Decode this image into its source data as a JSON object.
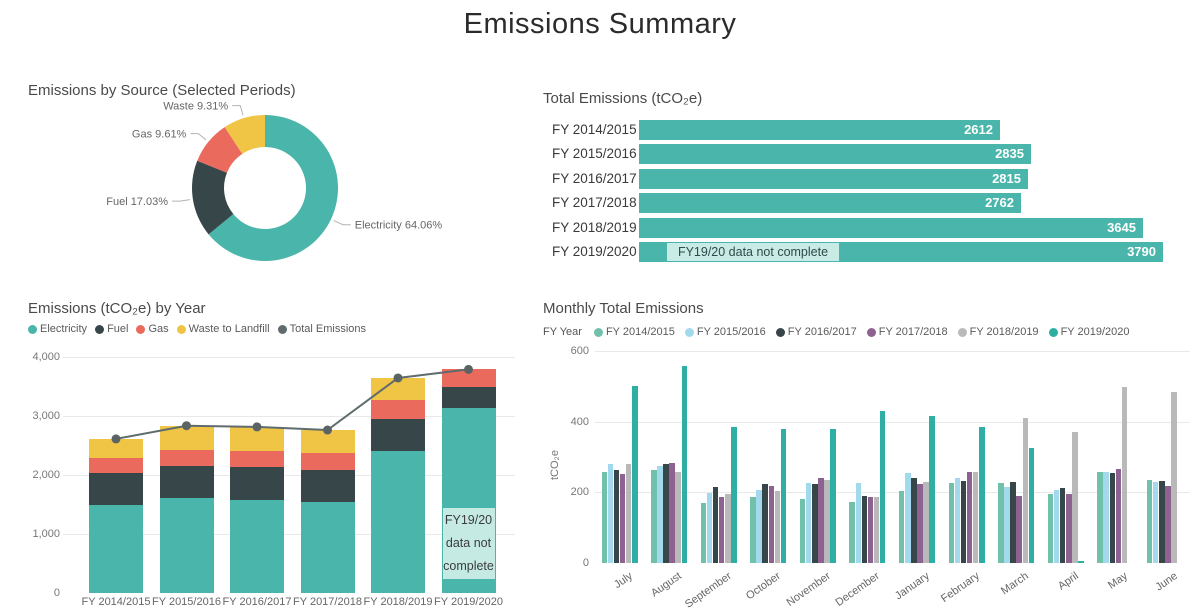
{
  "page": {
    "title": "Emissions Summary"
  },
  "colors": {
    "teal": "#4ab5aa",
    "dark": "#374649",
    "red": "#eb6a5e",
    "yellow": "#f0c545",
    "total_gray": "#5f6b6d",
    "annotation_bg": "#c9ebe5",
    "grid": "#e9e9e9",
    "muted_teal": "#70c0ac",
    "light_blue": "#a2d9ec",
    "purple": "#8d6190",
    "light_gray": "#b9b9b9",
    "bright_teal": "#2fafa3"
  },
  "chart_data": [
    {
      "type": "pie",
      "donut": true,
      "title": "Emissions by Source (Selected Periods)",
      "labels": [
        "Electricity",
        "Fuel",
        "Gas",
        "Waste"
      ],
      "values": [
        64.06,
        17.03,
        9.61,
        9.31
      ],
      "display_labels": [
        "Electricity 64.06%",
        "Fuel 17.03%",
        "Gas 9.61%",
        "Waste 9.31%"
      ],
      "colors": [
        "#4ab5aa",
        "#374649",
        "#eb6a5e",
        "#f0c545"
      ]
    },
    {
      "type": "bar",
      "orientation": "horizontal",
      "title": "Total Emissions (tCO₂e)",
      "categories": [
        "FY 2014/2015",
        "FY 2015/2016",
        "FY 2016/2017",
        "FY 2017/2018",
        "FY 2018/2019",
        "FY 2019/2020"
      ],
      "values": [
        2612,
        2835,
        2815,
        2762,
        3645,
        3790
      ],
      "bar_color": "#4ab5aa",
      "xlim": [
        0,
        3790
      ],
      "annotation": {
        "text": "FY19/20 data not complete",
        "row_index": 5
      }
    },
    {
      "type": "bar",
      "stacked": true,
      "title": "Emissions (tCO₂e) by Year",
      "categories": [
        "FY 2014/2015",
        "FY 2015/2016",
        "FY 2016/2017",
        "FY 2017/2018",
        "FY 2018/2019",
        "FY 2019/2020"
      ],
      "series": [
        {
          "name": "Electricity",
          "color": "#4ab5aa",
          "values": [
            1490,
            1610,
            1570,
            1540,
            2410,
            3130
          ]
        },
        {
          "name": "Fuel",
          "color": "#374649",
          "values": [
            540,
            550,
            560,
            540,
            545,
            355
          ]
        },
        {
          "name": "Gas",
          "color": "#eb6a5e",
          "values": [
            250,
            270,
            280,
            300,
            310,
            305
          ]
        },
        {
          "name": "Waste to Landfill",
          "color": "#f0c545",
          "values": [
            332,
            405,
            405,
            382,
            380,
            0
          ]
        }
      ],
      "line_series": {
        "name": "Total Emissions",
        "color": "#5f6b6d",
        "values": [
          2612,
          2835,
          2815,
          2762,
          3645,
          3790
        ]
      },
      "ylim": [
        0,
        4000
      ],
      "yticks": [
        "0",
        "1,000",
        "2,000",
        "3,000",
        "4,000"
      ],
      "annotation": {
        "lines": [
          "FY19/20",
          "data not",
          "complete"
        ],
        "category_index": 5
      }
    },
    {
      "type": "bar",
      "grouped": true,
      "title": "Monthly Total Emissions",
      "legend_title": "FY Year",
      "ylabel": "tCO₂e",
      "categories": [
        "July",
        "August",
        "September",
        "October",
        "November",
        "December",
        "January",
        "February",
        "March",
        "April",
        "May",
        "June"
      ],
      "series": [
        {
          "name": "FY 2014/2015",
          "color": "#70c0ac",
          "values": [
            257,
            263,
            171,
            188,
            180,
            174,
            203,
            226,
            226,
            194,
            257,
            234
          ]
        },
        {
          "name": "FY 2015/2016",
          "color": "#a2d9ec",
          "values": [
            280,
            274,
            197,
            206,
            226,
            226,
            254,
            240,
            214,
            206,
            257,
            228
          ]
        },
        {
          "name": "FY 2016/2017",
          "color": "#374649",
          "values": [
            263,
            280,
            214,
            223,
            223,
            191,
            240,
            231,
            229,
            211,
            254,
            231
          ]
        },
        {
          "name": "FY 2017/2018",
          "color": "#8d6190",
          "values": [
            251,
            283,
            188,
            217,
            240,
            188,
            223,
            257,
            189,
            194,
            266,
            217
          ]
        },
        {
          "name": "FY 2018/2019",
          "color": "#b9b9b9",
          "values": [
            280,
            257,
            194,
            203,
            234,
            186,
            229,
            257,
            409,
            371,
            497,
            485
          ]
        },
        {
          "name": "FY 2019/2020",
          "color": "#2fafa3",
          "values": [
            500,
            557,
            386,
            380,
            380,
            431,
            417,
            386,
            326,
            5,
            0,
            0
          ]
        }
      ],
      "ylim": [
        0,
        600
      ],
      "yticks": [
        "0",
        "200",
        "400",
        "600"
      ]
    }
  ]
}
